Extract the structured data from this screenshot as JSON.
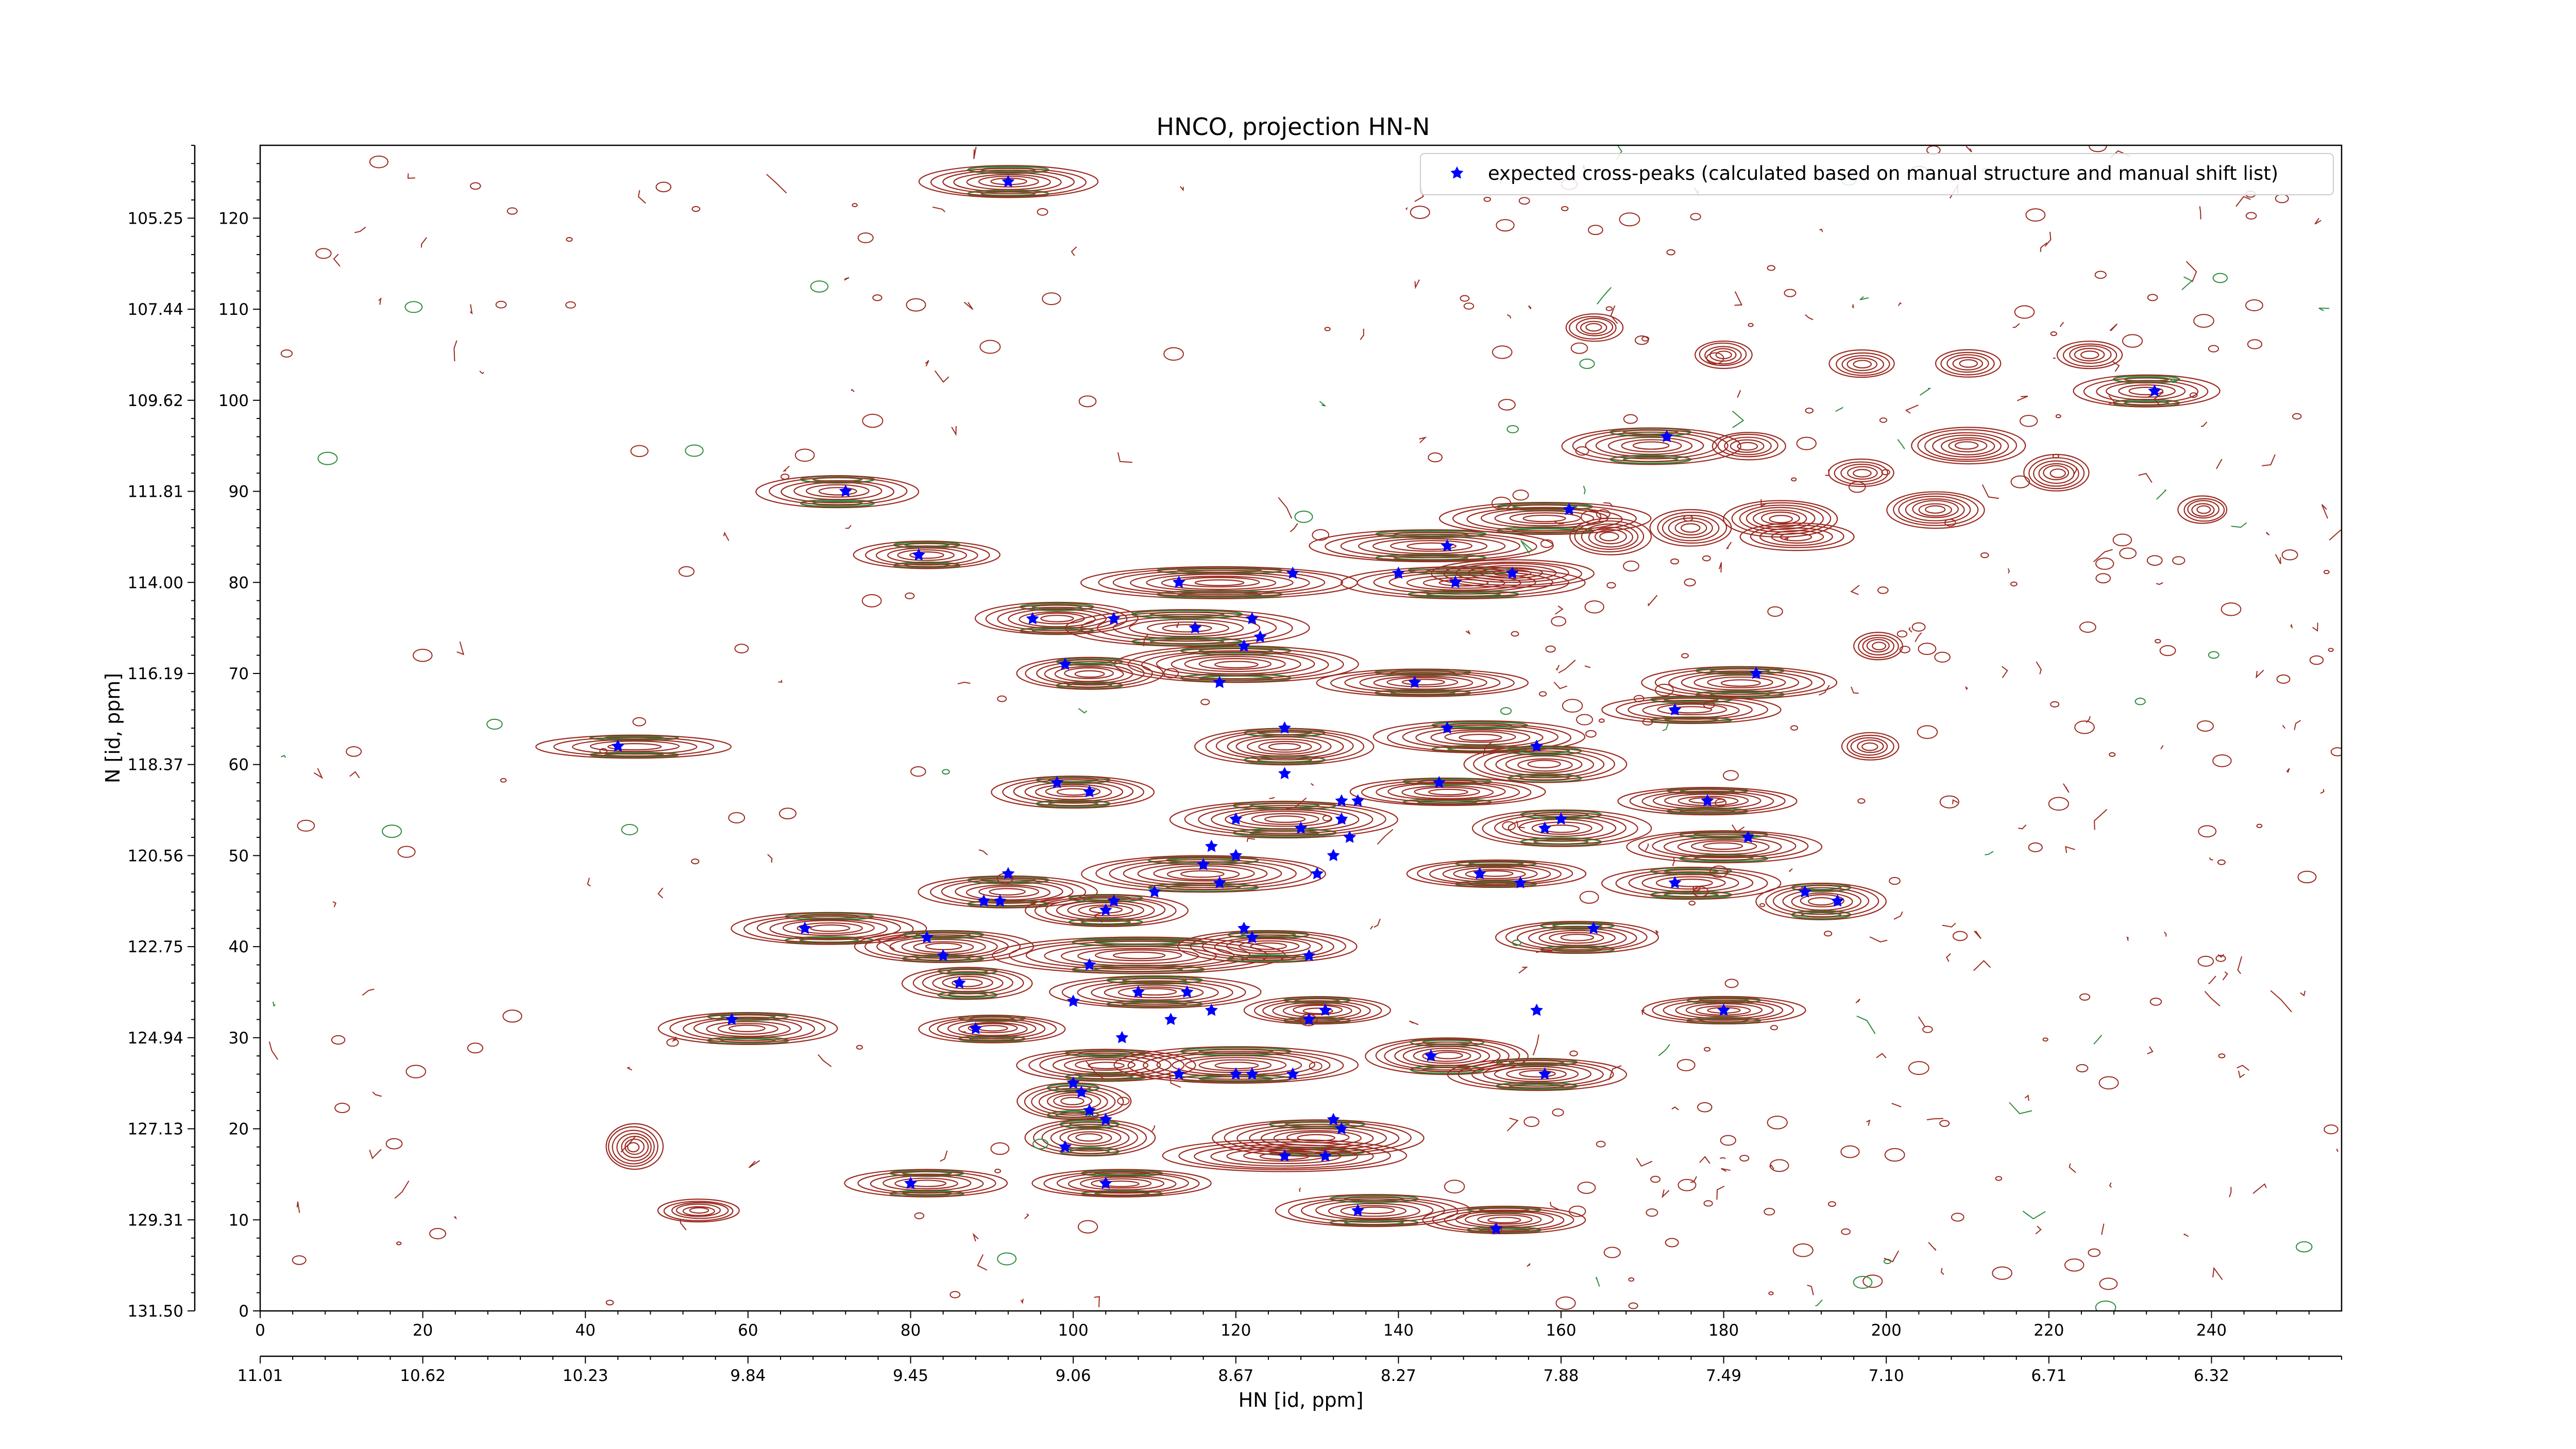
{
  "chart_data": {
    "type": "scatter",
    "title": "HNCO, projection HN-N",
    "xlabel": "HN [id, ppm]",
    "ylabel": "N [id, ppm]",
    "grid": false,
    "legend_position": "top-right",
    "xlim": [
      0,
      256
    ],
    "ylim": [
      0,
      128
    ],
    "x_ticks": [
      0,
      20,
      40,
      60,
      80,
      100,
      120,
      140,
      160,
      180,
      200,
      220,
      240
    ],
    "y_ticks": [
      0,
      10,
      20,
      30,
      40,
      50,
      60,
      70,
      80,
      90,
      100,
      110,
      120
    ],
    "x_ppm_labels": [
      "11.01",
      "10.62",
      "10.23",
      "9.84",
      "9.45",
      "9.06",
      "8.67",
      "8.27",
      "7.88",
      "7.49",
      "7.10",
      "6.71",
      "6.32"
    ],
    "y_ppm_labels": [
      "131.50",
      "129.31",
      "127.13",
      "124.94",
      "122.75",
      "120.56",
      "118.37",
      "116.19",
      "114.00",
      "111.81",
      "109.62",
      "107.44",
      "105.25"
    ],
    "colors": {
      "positive_contour": "#9c2a20",
      "negative_contour": "#2e8b3e",
      "marker": "#0000ff"
    },
    "series": [
      {
        "name": "expected cross-peaks (calculated based on manual structure and manual shift list)",
        "marker": "star",
        "color": "#0000ff",
        "points": [
          [
            92,
            124
          ],
          [
            233,
            101
          ],
          [
            173,
            96
          ],
          [
            72,
            90
          ],
          [
            161,
            88
          ],
          [
            81,
            83
          ],
          [
            146,
            84
          ],
          [
            113,
            80
          ],
          [
            127,
            81
          ],
          [
            140,
            81
          ],
          [
            147,
            80
          ],
          [
            154,
            81
          ],
          [
            95,
            76
          ],
          [
            105,
            76
          ],
          [
            115,
            75
          ],
          [
            122,
            76
          ],
          [
            123,
            74
          ],
          [
            121,
            73
          ],
          [
            118,
            69
          ],
          [
            99,
            71
          ],
          [
            142,
            69
          ],
          [
            184,
            70
          ],
          [
            174,
            66
          ],
          [
            44,
            62
          ],
          [
            126,
            64
          ],
          [
            146,
            64
          ],
          [
            157,
            62
          ],
          [
            126,
            59
          ],
          [
            98,
            58
          ],
          [
            102,
            57
          ],
          [
            145,
            58
          ],
          [
            178,
            56
          ],
          [
            133,
            56
          ],
          [
            135,
            56
          ],
          [
            120,
            54
          ],
          [
            128,
            53
          ],
          [
            133,
            54
          ],
          [
            134,
            52
          ],
          [
            160,
            54
          ],
          [
            158,
            53
          ],
          [
            117,
            51
          ],
          [
            120,
            50
          ],
          [
            132,
            50
          ],
          [
            183,
            52
          ],
          [
            110,
            46
          ],
          [
            118,
            47
          ],
          [
            116,
            49
          ],
          [
            130,
            48
          ],
          [
            150,
            48
          ],
          [
            155,
            47
          ],
          [
            92,
            48
          ],
          [
            104,
            44
          ],
          [
            105,
            45
          ],
          [
            89,
            45
          ],
          [
            91,
            45
          ],
          [
            174,
            47
          ],
          [
            190,
            46
          ],
          [
            194,
            45
          ],
          [
            67,
            42
          ],
          [
            82,
            41
          ],
          [
            84,
            39
          ],
          [
            102,
            38
          ],
          [
            122,
            41
          ],
          [
            121,
            42
          ],
          [
            129,
            39
          ],
          [
            164,
            42
          ],
          [
            86,
            36
          ],
          [
            108,
            35
          ],
          [
            114,
            35
          ],
          [
            100,
            34
          ],
          [
            112,
            32
          ],
          [
            117,
            33
          ],
          [
            129,
            32
          ],
          [
            131,
            33
          ],
          [
            157,
            33
          ],
          [
            180,
            33
          ],
          [
            58,
            32
          ],
          [
            88,
            31
          ],
          [
            106,
            30
          ],
          [
            144,
            28
          ],
          [
            113,
            26
          ],
          [
            100,
            25
          ],
          [
            101,
            24
          ],
          [
            120,
            26
          ],
          [
            122,
            26
          ],
          [
            127,
            26
          ],
          [
            158,
            26
          ],
          [
            102,
            22
          ],
          [
            104,
            21
          ],
          [
            132,
            21
          ],
          [
            133,
            20
          ],
          [
            131,
            17
          ],
          [
            126,
            17
          ],
          [
            99,
            18
          ],
          [
            80,
            14
          ],
          [
            104,
            14
          ],
          [
            152,
            9
          ],
          [
            135,
            11
          ]
        ]
      }
    ],
    "peak_clusters": [
      {
        "x": 92,
        "y": 124,
        "w": 22,
        "h": 3.5,
        "n": 7,
        "neg": true
      },
      {
        "x": 232,
        "y": 101,
        "w": 18,
        "h": 3.5,
        "n": 6,
        "neg": true
      },
      {
        "x": 171,
        "y": 95,
        "w": 22,
        "h": 4,
        "n": 7,
        "neg": true
      },
      {
        "x": 71,
        "y": 90,
        "w": 20,
        "h": 3.5,
        "n": 6,
        "neg": true
      },
      {
        "x": 158,
        "y": 87,
        "w": 26,
        "h": 3.5,
        "n": 7,
        "neg": true
      },
      {
        "x": 82,
        "y": 83,
        "w": 18,
        "h": 3,
        "n": 6,
        "neg": true
      },
      {
        "x": 144,
        "y": 84,
        "w": 30,
        "h": 3.5,
        "n": 7,
        "neg": true
      },
      {
        "x": 118,
        "y": 80,
        "w": 34,
        "h": 3.5,
        "n": 8,
        "neg": true
      },
      {
        "x": 148,
        "y": 80,
        "w": 30,
        "h": 3.5,
        "n": 7,
        "neg": true
      },
      {
        "x": 98,
        "y": 76,
        "w": 20,
        "h": 3.5,
        "n": 7,
        "neg": true
      },
      {
        "x": 114,
        "y": 75,
        "w": 30,
        "h": 4,
        "n": 7,
        "neg": true
      },
      {
        "x": 120,
        "y": 71,
        "w": 30,
        "h": 4,
        "n": 8,
        "neg": true
      },
      {
        "x": 102,
        "y": 70,
        "w": 18,
        "h": 3.5,
        "n": 7,
        "neg": true
      },
      {
        "x": 143,
        "y": 69,
        "w": 26,
        "h": 3,
        "n": 7,
        "neg": true
      },
      {
        "x": 182,
        "y": 69,
        "w": 24,
        "h": 3.5,
        "n": 7,
        "neg": true
      },
      {
        "x": 176,
        "y": 66,
        "w": 22,
        "h": 3,
        "n": 6,
        "neg": true
      },
      {
        "x": 46,
        "y": 62,
        "w": 24,
        "h": 2.5,
        "n": 5,
        "neg": true
      },
      {
        "x": 126,
        "y": 62,
        "w": 22,
        "h": 4,
        "n": 8,
        "neg": true
      },
      {
        "x": 150,
        "y": 63,
        "w": 26,
        "h": 3.5,
        "n": 7,
        "neg": true
      },
      {
        "x": 158,
        "y": 60,
        "w": 20,
        "h": 4,
        "n": 7,
        "neg": true
      },
      {
        "x": 100,
        "y": 57,
        "w": 20,
        "h": 3.5,
        "n": 7,
        "neg": true
      },
      {
        "x": 146,
        "y": 57,
        "w": 24,
        "h": 3,
        "n": 7,
        "neg": true
      },
      {
        "x": 178,
        "y": 56,
        "w": 22,
        "h": 3,
        "n": 7,
        "neg": true
      },
      {
        "x": 126,
        "y": 54,
        "w": 28,
        "h": 4,
        "n": 8,
        "neg": true
      },
      {
        "x": 160,
        "y": 53,
        "w": 22,
        "h": 4,
        "n": 7,
        "neg": true
      },
      {
        "x": 180,
        "y": 51,
        "w": 24,
        "h": 3.5,
        "n": 7,
        "neg": true
      },
      {
        "x": 116,
        "y": 48,
        "w": 30,
        "h": 4,
        "n": 8,
        "neg": true
      },
      {
        "x": 152,
        "y": 48,
        "w": 22,
        "h": 3,
        "n": 7,
        "neg": true
      },
      {
        "x": 92,
        "y": 46,
        "w": 22,
        "h": 3.5,
        "n": 7,
        "neg": true
      },
      {
        "x": 104,
        "y": 44,
        "w": 20,
        "h": 3.5,
        "n": 7,
        "neg": true
      },
      {
        "x": 176,
        "y": 47,
        "w": 22,
        "h": 3.5,
        "n": 6,
        "neg": true
      },
      {
        "x": 192,
        "y": 45,
        "w": 16,
        "h": 4,
        "n": 7,
        "neg": true
      },
      {
        "x": 70,
        "y": 42,
        "w": 24,
        "h": 3.5,
        "n": 7,
        "neg": true
      },
      {
        "x": 84,
        "y": 40,
        "w": 22,
        "h": 3.5,
        "n": 7,
        "neg": true
      },
      {
        "x": 108,
        "y": 39,
        "w": 36,
        "h": 4,
        "n": 8,
        "neg": true
      },
      {
        "x": 124,
        "y": 40,
        "w": 22,
        "h": 3.5,
        "n": 7,
        "neg": true
      },
      {
        "x": 162,
        "y": 41,
        "w": 20,
        "h": 3.5,
        "n": 7,
        "neg": true
      },
      {
        "x": 87,
        "y": 36,
        "w": 16,
        "h": 3.5,
        "n": 6,
        "neg": true
      },
      {
        "x": 110,
        "y": 35,
        "w": 26,
        "h": 3.5,
        "n": 7,
        "neg": true
      },
      {
        "x": 130,
        "y": 33,
        "w": 18,
        "h": 3,
        "n": 7,
        "neg": true
      },
      {
        "x": 180,
        "y": 33,
        "w": 20,
        "h": 3,
        "n": 7,
        "neg": true
      },
      {
        "x": 60,
        "y": 31,
        "w": 22,
        "h": 3.5,
        "n": 7,
        "neg": true
      },
      {
        "x": 90,
        "y": 31,
        "w": 18,
        "h": 3,
        "n": 7,
        "neg": true
      },
      {
        "x": 104,
        "y": 27,
        "w": 22,
        "h": 3.5,
        "n": 7,
        "neg": true
      },
      {
        "x": 120,
        "y": 27,
        "w": 30,
        "h": 4,
        "n": 8,
        "neg": true
      },
      {
        "x": 146,
        "y": 28,
        "w": 20,
        "h": 4,
        "n": 8,
        "neg": true
      },
      {
        "x": 157,
        "y": 26,
        "w": 22,
        "h": 3.5,
        "n": 7,
        "neg": true
      },
      {
        "x": 100,
        "y": 23,
        "w": 14,
        "h": 4,
        "n": 7,
        "neg": true
      },
      {
        "x": 102,
        "y": 19,
        "w": 16,
        "h": 4,
        "n": 7,
        "neg": true
      },
      {
        "x": 130,
        "y": 19,
        "w": 26,
        "h": 4,
        "n": 8,
        "neg": true
      },
      {
        "x": 126,
        "y": 17,
        "w": 30,
        "h": 3.5,
        "n": 7,
        "neg": false
      },
      {
        "x": 82,
        "y": 14,
        "w": 20,
        "h": 3,
        "n": 6,
        "neg": true
      },
      {
        "x": 106,
        "y": 14,
        "w": 22,
        "h": 3,
        "n": 7,
        "neg": true
      },
      {
        "x": 137,
        "y": 11,
        "w": 24,
        "h": 3.5,
        "n": 7,
        "neg": true
      },
      {
        "x": 153,
        "y": 10,
        "w": 20,
        "h": 3,
        "n": 7,
        "neg": true
      },
      {
        "x": 154,
        "y": 81,
        "w": 20,
        "h": 3,
        "n": 6,
        "neg": false
      },
      {
        "x": 46,
        "y": 18,
        "w": 7,
        "h": 5,
        "n": 7,
        "neg": false
      },
      {
        "x": 54,
        "y": 11,
        "w": 10,
        "h": 2.5,
        "n": 6,
        "neg": false
      },
      {
        "x": 187,
        "y": 87,
        "w": 14,
        "h": 4,
        "n": 7,
        "neg": false
      },
      {
        "x": 176,
        "y": 86,
        "w": 10,
        "h": 4,
        "n": 6,
        "neg": false
      },
      {
        "x": 166,
        "y": 85,
        "w": 10,
        "h": 4,
        "n": 6,
        "neg": false
      },
      {
        "x": 206,
        "y": 88,
        "w": 12,
        "h": 4,
        "n": 7,
        "neg": false
      },
      {
        "x": 210,
        "y": 95,
        "w": 14,
        "h": 4,
        "n": 7,
        "neg": false
      },
      {
        "x": 197,
        "y": 92,
        "w": 8,
        "h": 3,
        "n": 5,
        "neg": false
      },
      {
        "x": 221,
        "y": 92,
        "w": 8,
        "h": 4,
        "n": 6,
        "neg": false
      },
      {
        "x": 197,
        "y": 104,
        "w": 8,
        "h": 3,
        "n": 5,
        "neg": false
      },
      {
        "x": 210,
        "y": 104,
        "w": 8,
        "h": 3,
        "n": 5,
        "neg": false
      },
      {
        "x": 225,
        "y": 105,
        "w": 8,
        "h": 3,
        "n": 5,
        "neg": false
      },
      {
        "x": 183,
        "y": 95,
        "w": 9,
        "h": 3,
        "n": 5,
        "neg": false
      },
      {
        "x": 164,
        "y": 108,
        "w": 7,
        "h": 3,
        "n": 5,
        "neg": false
      },
      {
        "x": 180,
        "y": 105,
        "w": 7,
        "h": 3,
        "n": 5,
        "neg": false
      },
      {
        "x": 198,
        "y": 62,
        "w": 7,
        "h": 3,
        "n": 5,
        "neg": false
      },
      {
        "x": 189,
        "y": 85,
        "w": 14,
        "h": 3,
        "n": 5,
        "neg": false
      },
      {
        "x": 239,
        "y": 88,
        "w": 6,
        "h": 3,
        "n": 5,
        "neg": false
      },
      {
        "x": 199,
        "y": 73,
        "w": 6,
        "h": 3,
        "n": 5,
        "neg": false
      }
    ]
  }
}
